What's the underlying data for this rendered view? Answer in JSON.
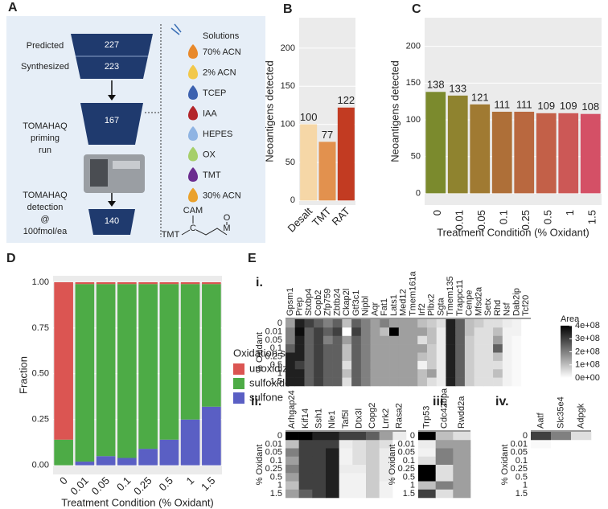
{
  "diagram": {
    "panel": "A",
    "predicted": "Predicted",
    "predicted_count": 227,
    "synthesized": "Synthesized",
    "synthesized_count": 223,
    "priming": [
      "TOMAHAQ",
      "priming",
      "run"
    ],
    "priming_count": 167,
    "detection": [
      "TOMAHAQ",
      "detection",
      "@",
      "100fmol/ea"
    ],
    "detection_count": 140,
    "solutions_title": "Solutions",
    "solutions": [
      {
        "name": "70% ACN",
        "color": "#e8892b"
      },
      {
        "name": "2% ACN",
        "color": "#f2c84b"
      },
      {
        "name": "TCEP",
        "color": "#3d62b0"
      },
      {
        "name": "IAA",
        "color": "#b3262b"
      },
      {
        "name": "HEPES",
        "color": "#8fb4e3"
      },
      {
        "name": "OX",
        "color": "#a6cf6a"
      },
      {
        "name": "TMT",
        "color": "#6b2c8f"
      },
      {
        "name": "30% ACN",
        "color": "#eaa12c"
      }
    ],
    "structure": {
      "top": "CAM",
      "left": "TMT",
      "center": "C",
      "right_top": "O",
      "right_bottom": "M"
    }
  },
  "chart_data": [
    {
      "panel": "B",
      "type": "bar",
      "categories": [
        "Desalt",
        "TMT",
        "RAT"
      ],
      "values": [
        100,
        77,
        122
      ],
      "colors": [
        "#f6d7a7",
        "#e2914e",
        "#c23b22"
      ],
      "ylabel": "Neoantigens detected",
      "ylim": [
        -6,
        240
      ],
      "yticks": [
        0,
        50,
        100,
        150,
        200
      ],
      "grid": true,
      "xrotate": -45
    },
    {
      "panel": "C",
      "type": "bar",
      "categories": [
        "0",
        "0.01",
        "0.05",
        "0.1",
        "0.25",
        "0.5",
        "1",
        "1.5"
      ],
      "values": [
        138,
        133,
        121,
        111,
        111,
        109,
        109,
        108
      ],
      "colors": [
        "#7b8a2d",
        "#8f832f",
        "#a07a32",
        "#ae6f38",
        "#b9683f",
        "#c36048",
        "#cc5856",
        "#d45066"
      ],
      "ylabel": "Neoantigens detected",
      "xlabel": "Treatment Condition (% Oxidant)",
      "ylim": [
        -16,
        239
      ],
      "yticks": [
        0,
        50,
        100,
        150,
        200
      ],
      "grid": true,
      "xrotate": -90
    },
    {
      "panel": "D",
      "type": "stacked_bar",
      "categories": [
        "0",
        "0.01",
        "0.05",
        "0.1",
        "0.25",
        "0.5",
        "1",
        "1.5"
      ],
      "series": [
        {
          "name": "unoxidized",
          "color": "#db5552",
          "values": [
            0.86,
            0.01,
            0.01,
            0.01,
            0.01,
            0.01,
            0.01,
            0.01
          ]
        },
        {
          "name": "sulfoxide",
          "color": "#4dab46",
          "values": [
            0.14,
            0.97,
            0.94,
            0.95,
            0.9,
            0.85,
            0.74,
            0.67
          ]
        },
        {
          "name": "sulfone",
          "color": "#5a5fc4",
          "values": [
            0,
            0.02,
            0.05,
            0.04,
            0.09,
            0.14,
            0.25,
            0.32
          ]
        }
      ],
      "legend_title": "Oxidation state",
      "ylabel": "Fraction",
      "xlabel": "Treatment Condition (% Oxidant)",
      "ylim": [
        -0.05,
        1.035
      ],
      "yticks": [
        {
          "value": 0,
          "label": "0.00"
        },
        0.25,
        {
          "value": 0.5,
          "label": "0.50"
        },
        0.75,
        {
          "value": 1,
          "label": "1.00"
        }
      ],
      "xrotate": -45
    },
    {
      "panel": "E",
      "roman": "i.",
      "type": "heatmap",
      "columns": [
        "Gpsm1",
        "Prep",
        "Stxbp4",
        "Copb2",
        "Zfp759",
        "Zbtb24",
        "Ckap2l",
        "Gtf3c1",
        "Nipbl",
        "Aqr",
        "Fat1",
        "Lats1",
        "Med12",
        "Tmem161a",
        "Irf2",
        "Plbx2",
        "Sgta",
        "Tmem135",
        "Trappc11",
        "Cenpe",
        "Mfsd2a",
        "Setx",
        "Rhd",
        "Nsf",
        "Dab2ip",
        "Tcf20"
      ],
      "rows": [
        "0",
        "0.01",
        "0.05",
        "0.1",
        "0.25",
        "0.5",
        "1",
        "1.5"
      ],
      "ylabel": "% Oxidant",
      "zlim": [
        0,
        400000000.0
      ],
      "values": [
        [
          150000000.0,
          350000000.0,
          300000000.0,
          250000000.0,
          200000000.0,
          250000000.0,
          100000000.0,
          250000000.0,
          200000000.0,
          150000000.0,
          200000000.0,
          150000000.0,
          150000000.0,
          150000000.0,
          100000000.0,
          80000000.0,
          50000000.0,
          350000000.0,
          250000000.0,
          100000000.0,
          80000000.0,
          50000000.0,
          50000000.0,
          30000000.0,
          20000000.0,
          0
        ],
        [
          200000000.0,
          380000000.0,
          250000000.0,
          300000000.0,
          250000000.0,
          300000000.0,
          0,
          300000000.0,
          200000000.0,
          150000000.0,
          100000000.0,
          400000000.0,
          150000000.0,
          150000000.0,
          150000000.0,
          100000000.0,
          30000000.0,
          350000000.0,
          250000000.0,
          100000000.0,
          50000000.0,
          50000000.0,
          100000000.0,
          20000000.0,
          20000000.0,
          0
        ],
        [
          200000000.0,
          350000000.0,
          250000000.0,
          300000000.0,
          200000000.0,
          250000000.0,
          150000000.0,
          250000000.0,
          200000000.0,
          150000000.0,
          150000000.0,
          150000000.0,
          150000000.0,
          150000000.0,
          50000000.0,
          100000000.0,
          30000000.0,
          350000000.0,
          250000000.0,
          80000000.0,
          50000000.0,
          50000000.0,
          150000000.0,
          20000000.0,
          10000000.0,
          0
        ],
        [
          250000000.0,
          350000000.0,
          250000000.0,
          300000000.0,
          250000000.0,
          250000000.0,
          100000000.0,
          250000000.0,
          200000000.0,
          150000000.0,
          150000000.0,
          150000000.0,
          150000000.0,
          150000000.0,
          150000000.0,
          80000000.0,
          30000000.0,
          350000000.0,
          250000000.0,
          80000000.0,
          50000000.0,
          50000000.0,
          250000000.0,
          20000000.0,
          10000000.0,
          0
        ],
        [
          350000000.0,
          350000000.0,
          250000000.0,
          300000000.0,
          250000000.0,
          250000000.0,
          100000000.0,
          250000000.0,
          200000000.0,
          150000000.0,
          150000000.0,
          150000000.0,
          150000000.0,
          150000000.0,
          100000000.0,
          80000000.0,
          30000000.0,
          350000000.0,
          250000000.0,
          80000000.0,
          50000000.0,
          50000000.0,
          100000000.0,
          20000000.0,
          10000000.0,
          0
        ],
        [
          350000000.0,
          300000000.0,
          250000000.0,
          300000000.0,
          250000000.0,
          250000000.0,
          50000000.0,
          250000000.0,
          200000000.0,
          150000000.0,
          150000000.0,
          150000000.0,
          150000000.0,
          150000000.0,
          20000000.0,
          80000000.0,
          30000000.0,
          350000000.0,
          250000000.0,
          80000000.0,
          50000000.0,
          50000000.0,
          50000000.0,
          20000000.0,
          10000000.0,
          0
        ],
        [
          350000000.0,
          350000000.0,
          250000000.0,
          300000000.0,
          250000000.0,
          250000000.0,
          100000000.0,
          250000000.0,
          200000000.0,
          150000000.0,
          150000000.0,
          150000000.0,
          150000000.0,
          150000000.0,
          100000000.0,
          150000000.0,
          30000000.0,
          350000000.0,
          250000000.0,
          80000000.0,
          50000000.0,
          50000000.0,
          100000000.0,
          20000000.0,
          10000000.0,
          0
        ],
        [
          350000000.0,
          350000000.0,
          250000000.0,
          300000000.0,
          250000000.0,
          250000000.0,
          50000000.0,
          250000000.0,
          200000000.0,
          150000000.0,
          150000000.0,
          150000000.0,
          150000000.0,
          150000000.0,
          100000000.0,
          50000000.0,
          30000000.0,
          350000000.0,
          250000000.0,
          80000000.0,
          50000000.0,
          50000000.0,
          50000000.0,
          20000000.0,
          10000000.0,
          0
        ]
      ],
      "colorbar": {
        "title": "Area",
        "ticks": [
          {
            "value": 400000000.0,
            "label": "4e+08"
          },
          {
            "value": 300000000.0,
            "label": "3e+08"
          },
          {
            "value": 200000000.0,
            "label": "2e+08"
          },
          {
            "value": 100000000.0,
            "label": "1e+08"
          },
          {
            "value": 0,
            "label": "0e+00"
          }
        ]
      }
    },
    {
      "roman": "ii.",
      "type": "heatmap",
      "columns": [
        "Arhgap24",
        "Kif14",
        "Ssh1",
        "Nle1",
        "Taf5l",
        "Dtx3l",
        "Copg2",
        "Lrrk2",
        "Rasa2"
      ],
      "rows": [
        "0",
        "0.01",
        "0.05",
        "0.1",
        "0.25",
        "0.5",
        "1",
        "1.5"
      ],
      "ylabel": "% Oxidant",
      "zlim": [
        0,
        400000000.0
      ],
      "values": [
        [
          400000000.0,
          400000000.0,
          350000000.0,
          350000000.0,
          300000000.0,
          300000000.0,
          250000000.0,
          150000000.0,
          30000000.0
        ],
        [
          100000000.0,
          300000000.0,
          300000000.0,
          300000000.0,
          30000000.0,
          50000000.0,
          80000000.0,
          50000000.0,
          0
        ],
        [
          200000000.0,
          300000000.0,
          300000000.0,
          350000000.0,
          20000000.0,
          50000000.0,
          80000000.0,
          30000000.0,
          0
        ],
        [
          150000000.0,
          300000000.0,
          300000000.0,
          350000000.0,
          20000000.0,
          50000000.0,
          80000000.0,
          30000000.0,
          0
        ],
        [
          200000000.0,
          300000000.0,
          300000000.0,
          350000000.0,
          30000000.0,
          30000000.0,
          80000000.0,
          30000000.0,
          0
        ],
        [
          150000000.0,
          300000000.0,
          300000000.0,
          350000000.0,
          20000000.0,
          20000000.0,
          80000000.0,
          30000000.0,
          0
        ],
        [
          100000000.0,
          300000000.0,
          300000000.0,
          350000000.0,
          20000000.0,
          20000000.0,
          80000000.0,
          20000000.0,
          0
        ],
        [
          150000000.0,
          250000000.0,
          300000000.0,
          350000000.0,
          20000000.0,
          20000000.0,
          80000000.0,
          20000000.0,
          0
        ]
      ]
    },
    {
      "roman": "iii.",
      "type": "heatmap",
      "columns": [
        "Trp53",
        "Cdc42bpa",
        "Rwdd2a"
      ],
      "rows": [
        "0",
        "0.01",
        "0.05",
        "0.1",
        "0.25",
        "0.5",
        "1",
        "1.5"
      ],
      "ylabel": "% Oxidant",
      "zlim": [
        0,
        400000000.0
      ],
      "values": [
        [
          400000000.0,
          100000000.0,
          50000000.0
        ],
        [
          30000000.0,
          150000000.0,
          150000000.0
        ],
        [
          20000000.0,
          200000000.0,
          150000000.0
        ],
        [
          50000000.0,
          200000000.0,
          150000000.0
        ],
        [
          400000000.0,
          50000000.0,
          150000000.0
        ],
        [
          400000000.0,
          50000000.0,
          150000000.0
        ],
        [
          100000000.0,
          200000000.0,
          150000000.0
        ],
        [
          300000000.0,
          50000000.0,
          150000000.0
        ]
      ]
    },
    {
      "roman": "iv.",
      "type": "heatmap",
      "columns": [
        "Aatf",
        "Slc35e4",
        "Adpgk"
      ],
      "rows": [
        "0",
        "0.01",
        "0.05",
        "0.1",
        "0.25",
        "0.5",
        "1",
        "1.5"
      ],
      "ylabel": "% Oxidant",
      "zlim": [
        0,
        400000000.0
      ],
      "values": [
        [
          300000000.0,
          200000000.0,
          50000000.0
        ],
        [
          10000000.0,
          0,
          0
        ],
        [
          0,
          0,
          0
        ],
        [
          0,
          0,
          0
        ],
        [
          0,
          0,
          0
        ],
        [
          0,
          0,
          0
        ],
        [
          0,
          0,
          0
        ],
        [
          0,
          0,
          0
        ]
      ]
    }
  ]
}
